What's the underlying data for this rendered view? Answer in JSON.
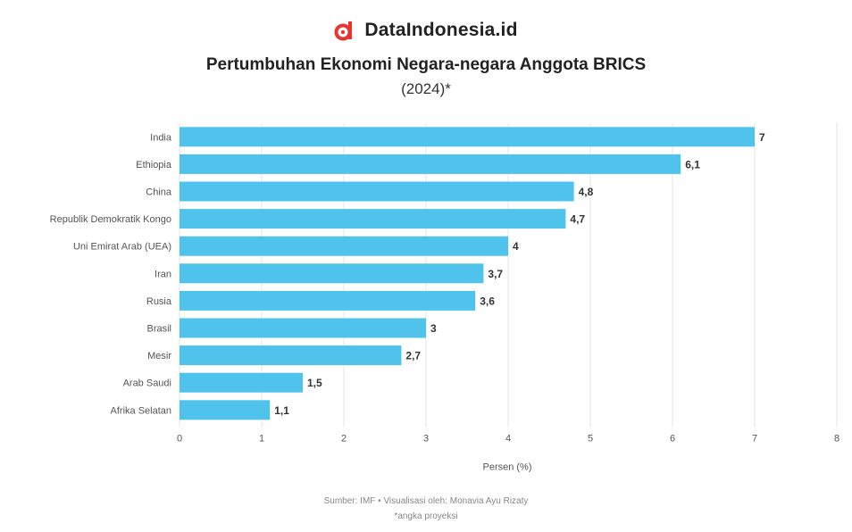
{
  "brand": {
    "name": "DataIndonesia.id",
    "logo_color": "#e8342e"
  },
  "chart_data": {
    "type": "bar",
    "orientation": "horizontal",
    "title": "Pertumbuhan Ekonomi Negara-negara Anggota BRICS",
    "subtitle": "(2024)*",
    "categories": [
      "India",
      "Ethiopia",
      "China",
      "Republik Demokratik Kongo",
      "Uni Emirat Arab (UEA)",
      "Iran",
      "Rusia",
      "Brasil",
      "Mesir",
      "Arab Saudi",
      "Afrika Selatan"
    ],
    "values": [
      7,
      6.1,
      4.8,
      4.7,
      4,
      3.7,
      3.6,
      3,
      2.7,
      1.5,
      1.1
    ],
    "value_labels": [
      "7",
      "6,1",
      "4,8",
      "4,7",
      "4",
      "3,7",
      "3,6",
      "3",
      "2,7",
      "1,5",
      "1,1"
    ],
    "xlabel": "Persen (%)",
    "xlim": [
      0,
      8
    ],
    "xticks": [
      0,
      1,
      2,
      3,
      4,
      5,
      6,
      7,
      8
    ],
    "grid": true,
    "bar_color": "#4fc3ec"
  },
  "footer": {
    "source": "Sumber: IMF • Visualisasi oleh: Monavia Ayu Rizaty",
    "note": "*angka proyeksi"
  }
}
